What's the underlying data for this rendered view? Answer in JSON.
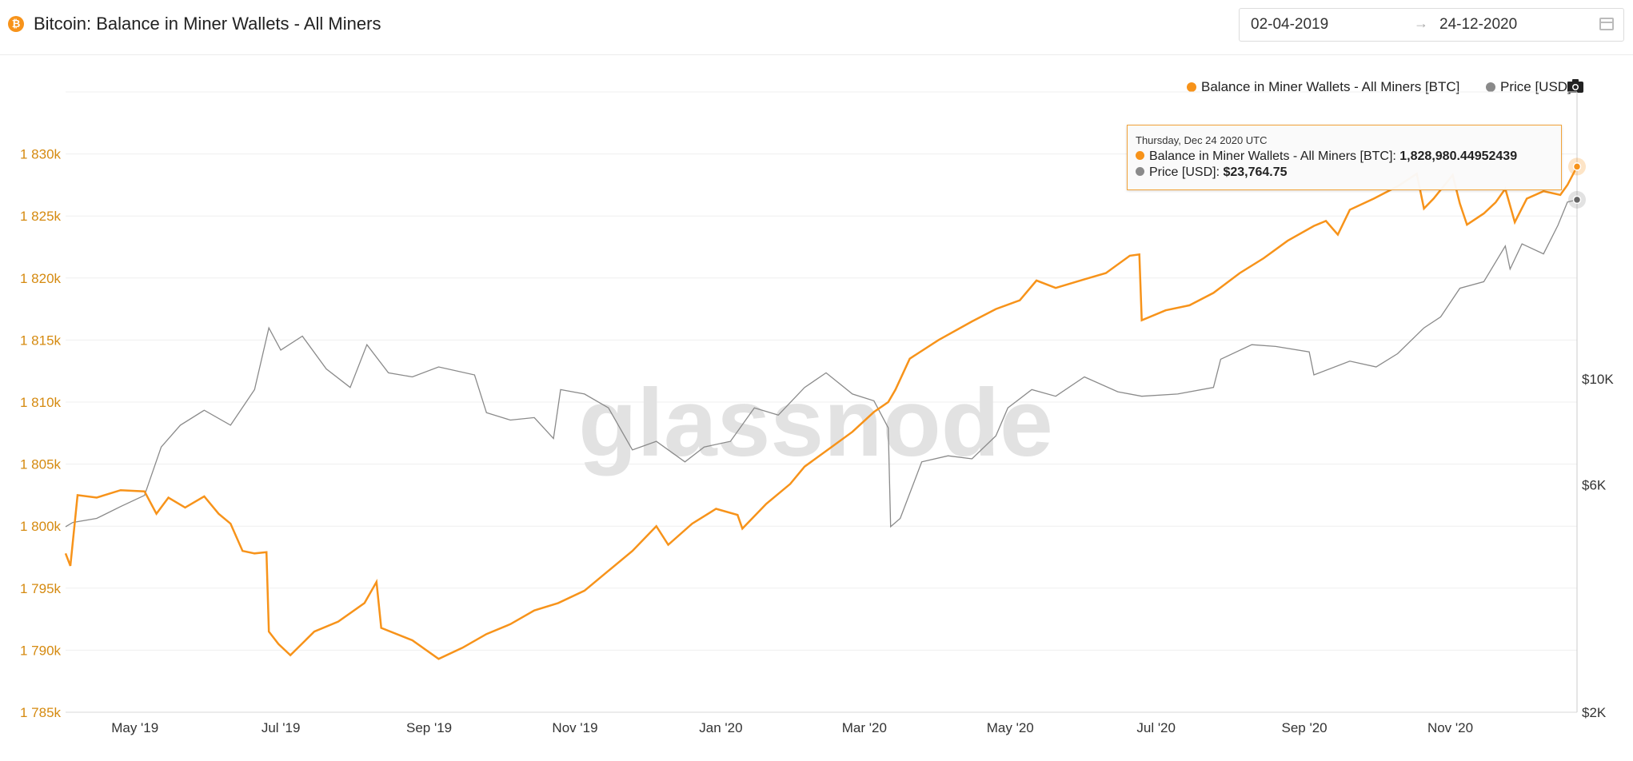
{
  "header": {
    "title": "Bitcoin: Balance in Miner Wallets - All Miners",
    "btc_icon_label": "₿",
    "date_start": "02-04-2019",
    "date_end": "24-12-2020",
    "date_arrow": "→"
  },
  "legend": {
    "series1": "Balance in Miner Wallets - All Miners [BTC]",
    "series2": "Price [USD]"
  },
  "colors": {
    "balance": "#f7931a",
    "price": "#8a8a8a",
    "balance_axis": "#d58a10"
  },
  "watermark": "glassnode",
  "tooltip": {
    "date": "Thursday, Dec 24 2020 UTC",
    "balance_label": "Balance in Miner Wallets - All Miners [BTC]:",
    "balance_value": "1,828,980.44952439",
    "price_label": "Price [USD]:",
    "price_value": "$23,764.75"
  },
  "chart_data": {
    "type": "line",
    "title": "Bitcoin: Balance in Miner Wallets - All Miners",
    "x_range": [
      "2019-04-02",
      "2020-12-24"
    ],
    "x_ticks": [
      {
        "date": "2019-05-01",
        "label": "May '19"
      },
      {
        "date": "2019-07-01",
        "label": "Jul '19"
      },
      {
        "date": "2019-09-01",
        "label": "Sep '19"
      },
      {
        "date": "2019-11-01",
        "label": "Nov '19"
      },
      {
        "date": "2020-01-01",
        "label": "Jan '20"
      },
      {
        "date": "2020-03-01",
        "label": "Mar '20"
      },
      {
        "date": "2020-05-01",
        "label": "May '20"
      },
      {
        "date": "2020-07-01",
        "label": "Jul '20"
      },
      {
        "date": "2020-09-01",
        "label": "Sep '20"
      },
      {
        "date": "2020-11-01",
        "label": "Nov '20"
      }
    ],
    "y_left": {
      "scale": "linear",
      "range": [
        1785000,
        1835000
      ],
      "ticks": [
        {
          "value": 1785000,
          "label": "1 785k"
        },
        {
          "value": 1790000,
          "label": "1 790k"
        },
        {
          "value": 1795000,
          "label": "1 795k"
        },
        {
          "value": 1800000,
          "label": "1 800k"
        },
        {
          "value": 1805000,
          "label": "1 805k"
        },
        {
          "value": 1810000,
          "label": "1 810k"
        },
        {
          "value": 1815000,
          "label": "1 815k"
        },
        {
          "value": 1820000,
          "label": "1 820k"
        },
        {
          "value": 1825000,
          "label": "1 825k"
        },
        {
          "value": 1830000,
          "label": "1 830k"
        }
      ]
    },
    "y_right": {
      "scale": "log",
      "range": [
        2000,
        40000
      ],
      "ticks": [
        {
          "value": 2000,
          "label": "$2K"
        },
        {
          "value": 6000,
          "label": "$6K"
        },
        {
          "value": 10000,
          "label": "$10K"
        }
      ]
    },
    "grid": true,
    "legend_position": "top-right",
    "series": [
      {
        "name": "Balance in Miner Wallets - All Miners [BTC]",
        "axis": "left",
        "points": [
          [
            "2019-04-02",
            1797800
          ],
          [
            "2019-04-04",
            1796800
          ],
          [
            "2019-04-07",
            1802500
          ],
          [
            "2019-04-15",
            1802300
          ],
          [
            "2019-04-25",
            1802900
          ],
          [
            "2019-05-05",
            1802800
          ],
          [
            "2019-05-10",
            1801000
          ],
          [
            "2019-05-15",
            1802300
          ],
          [
            "2019-05-22",
            1801500
          ],
          [
            "2019-05-30",
            1802400
          ],
          [
            "2019-06-05",
            1801000
          ],
          [
            "2019-06-10",
            1800200
          ],
          [
            "2019-06-15",
            1798000
          ],
          [
            "2019-06-20",
            1797800
          ],
          [
            "2019-06-25",
            1797900
          ],
          [
            "2019-06-26",
            1791500
          ],
          [
            "2019-06-30",
            1790500
          ],
          [
            "2019-07-05",
            1789600
          ],
          [
            "2019-07-15",
            1791500
          ],
          [
            "2019-07-25",
            1792300
          ],
          [
            "2019-08-05",
            1793800
          ],
          [
            "2019-08-10",
            1795500
          ],
          [
            "2019-08-12",
            1791800
          ],
          [
            "2019-08-25",
            1790800
          ],
          [
            "2019-09-05",
            1789300
          ],
          [
            "2019-09-15",
            1790200
          ],
          [
            "2019-09-25",
            1791300
          ],
          [
            "2019-10-05",
            1792100
          ],
          [
            "2019-10-15",
            1793200
          ],
          [
            "2019-10-25",
            1793800
          ],
          [
            "2019-11-05",
            1794800
          ],
          [
            "2019-11-15",
            1796400
          ],
          [
            "2019-11-25",
            1798000
          ],
          [
            "2019-12-05",
            1800000
          ],
          [
            "2019-12-10",
            1798500
          ],
          [
            "2019-12-20",
            1800200
          ],
          [
            "2019-12-30",
            1801400
          ],
          [
            "2020-01-08",
            1800900
          ],
          [
            "2020-01-10",
            1799800
          ],
          [
            "2020-01-20",
            1801800
          ],
          [
            "2020-01-30",
            1803400
          ],
          [
            "2020-02-05",
            1804800
          ],
          [
            "2020-02-15",
            1806200
          ],
          [
            "2020-02-25",
            1807600
          ],
          [
            "2020-03-05",
            1809200
          ],
          [
            "2020-03-11",
            1810000
          ],
          [
            "2020-03-14",
            1811000
          ],
          [
            "2020-03-20",
            1813500
          ],
          [
            "2020-04-01",
            1815000
          ],
          [
            "2020-04-15",
            1816500
          ],
          [
            "2020-04-25",
            1817500
          ],
          [
            "2020-05-05",
            1818200
          ],
          [
            "2020-05-12",
            1819800
          ],
          [
            "2020-05-20",
            1819200
          ],
          [
            "2020-06-01",
            1819900
          ],
          [
            "2020-06-10",
            1820400
          ],
          [
            "2020-06-20",
            1821800
          ],
          [
            "2020-06-24",
            1821900
          ],
          [
            "2020-06-25",
            1816600
          ],
          [
            "2020-07-05",
            1817400
          ],
          [
            "2020-07-15",
            1817800
          ],
          [
            "2020-07-25",
            1818800
          ],
          [
            "2020-08-05",
            1820400
          ],
          [
            "2020-08-15",
            1821600
          ],
          [
            "2020-08-25",
            1823000
          ],
          [
            "2020-09-05",
            1824200
          ],
          [
            "2020-09-10",
            1824600
          ],
          [
            "2020-09-15",
            1823500
          ],
          [
            "2020-09-20",
            1825500
          ],
          [
            "2020-09-30",
            1826400
          ],
          [
            "2020-10-10",
            1827400
          ],
          [
            "2020-10-18",
            1828400
          ],
          [
            "2020-10-21",
            1825600
          ],
          [
            "2020-10-25",
            1826400
          ],
          [
            "2020-11-02",
            1828300
          ],
          [
            "2020-11-05",
            1826000
          ],
          [
            "2020-11-08",
            1824300
          ],
          [
            "2020-11-15",
            1825200
          ],
          [
            "2020-11-20",
            1826100
          ],
          [
            "2020-11-24",
            1827200
          ],
          [
            "2020-11-28",
            1824500
          ],
          [
            "2020-12-03",
            1826400
          ],
          [
            "2020-12-10",
            1827000
          ],
          [
            "2020-12-17",
            1826700
          ],
          [
            "2020-12-20",
            1827500
          ],
          [
            "2020-12-24",
            1828980
          ]
        ]
      },
      {
        "name": "Price [USD]",
        "axis": "right",
        "points": [
          [
            "2019-04-02",
            4900
          ],
          [
            "2019-04-05",
            5000
          ],
          [
            "2019-04-15",
            5100
          ],
          [
            "2019-04-25",
            5400
          ],
          [
            "2019-05-05",
            5700
          ],
          [
            "2019-05-12",
            7200
          ],
          [
            "2019-05-20",
            8000
          ],
          [
            "2019-05-30",
            8600
          ],
          [
            "2019-06-10",
            8000
          ],
          [
            "2019-06-20",
            9500
          ],
          [
            "2019-06-26",
            12800
          ],
          [
            "2019-07-01",
            11500
          ],
          [
            "2019-07-10",
            12300
          ],
          [
            "2019-07-20",
            10500
          ],
          [
            "2019-07-30",
            9600
          ],
          [
            "2019-08-06",
            11800
          ],
          [
            "2019-08-15",
            10300
          ],
          [
            "2019-08-25",
            10100
          ],
          [
            "2019-09-05",
            10600
          ],
          [
            "2019-09-20",
            10200
          ],
          [
            "2019-09-25",
            8500
          ],
          [
            "2019-10-05",
            8200
          ],
          [
            "2019-10-15",
            8300
          ],
          [
            "2019-10-23",
            7500
          ],
          [
            "2019-10-26",
            9500
          ],
          [
            "2019-11-05",
            9300
          ],
          [
            "2019-11-15",
            8700
          ],
          [
            "2019-11-25",
            7100
          ],
          [
            "2019-12-05",
            7400
          ],
          [
            "2019-12-17",
            6700
          ],
          [
            "2019-12-25",
            7200
          ],
          [
            "2020-01-05",
            7400
          ],
          [
            "2020-01-15",
            8700
          ],
          [
            "2020-01-25",
            8400
          ],
          [
            "2020-02-05",
            9600
          ],
          [
            "2020-02-14",
            10300
          ],
          [
            "2020-02-25",
            9300
          ],
          [
            "2020-03-05",
            9000
          ],
          [
            "2020-03-11",
            7900
          ],
          [
            "2020-03-12",
            4900
          ],
          [
            "2020-03-16",
            5100
          ],
          [
            "2020-03-25",
            6700
          ],
          [
            "2020-04-05",
            6900
          ],
          [
            "2020-04-15",
            6800
          ],
          [
            "2020-04-25",
            7600
          ],
          [
            "2020-04-30",
            8700
          ],
          [
            "2020-05-10",
            9500
          ],
          [
            "2020-05-20",
            9200
          ],
          [
            "2020-06-01",
            10100
          ],
          [
            "2020-06-15",
            9400
          ],
          [
            "2020-06-25",
            9200
          ],
          [
            "2020-07-10",
            9300
          ],
          [
            "2020-07-25",
            9600
          ],
          [
            "2020-07-28",
            11000
          ],
          [
            "2020-08-10",
            11800
          ],
          [
            "2020-08-20",
            11700
          ],
          [
            "2020-09-03",
            11400
          ],
          [
            "2020-09-05",
            10200
          ],
          [
            "2020-09-20",
            10900
          ],
          [
            "2020-10-01",
            10600
          ],
          [
            "2020-10-10",
            11300
          ],
          [
            "2020-10-21",
            12800
          ],
          [
            "2020-10-28",
            13500
          ],
          [
            "2020-11-05",
            15500
          ],
          [
            "2020-11-15",
            16000
          ],
          [
            "2020-11-24",
            19000
          ],
          [
            "2020-11-26",
            17000
          ],
          [
            "2020-12-01",
            19200
          ],
          [
            "2020-12-10",
            18300
          ],
          [
            "2020-12-16",
            21000
          ],
          [
            "2020-12-20",
            23500
          ],
          [
            "2020-12-24",
            23764.75
          ]
        ]
      }
    ]
  }
}
